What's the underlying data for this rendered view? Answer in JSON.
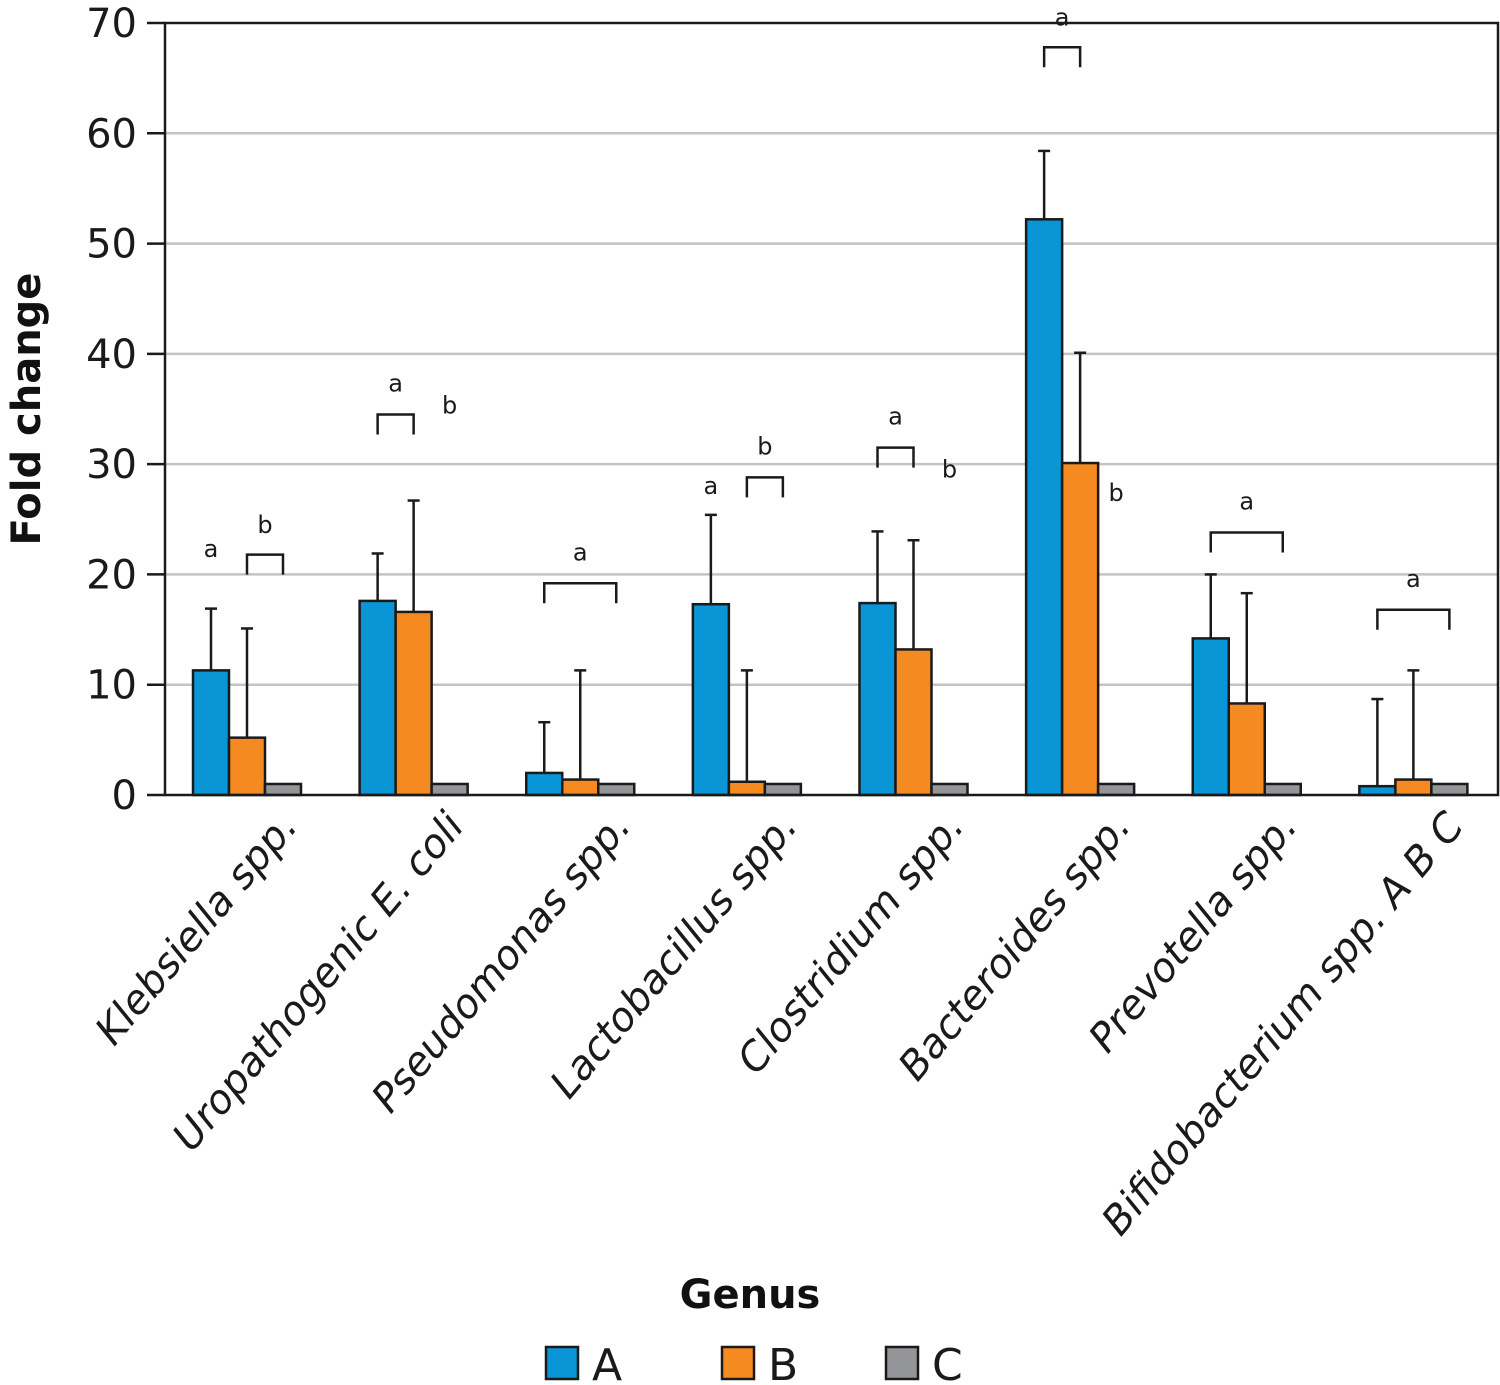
{
  "chart_data": {
    "type": "bar",
    "title": "",
    "xlabel": "Genus",
    "ylabel": "Fold change",
    "ylim": [
      0,
      70
    ],
    "yticks": [
      0,
      10,
      20,
      30,
      40,
      50,
      60,
      70
    ],
    "grid": true,
    "legend_position": "bottom",
    "categories": [
      {
        "label": "Klebsiella spp."
      },
      {
        "label": "Uropathogenic E. coli"
      },
      {
        "label": "Pseudomonas spp."
      },
      {
        "label": "Lactobacillus spp."
      },
      {
        "label": "Clostridium spp."
      },
      {
        "label": "Bacteroides spp."
      },
      {
        "label": "Prevotella spp."
      },
      {
        "label": "Bifidobacterium spp. A B C"
      }
    ],
    "series": [
      {
        "name": "A",
        "color": "#0a95d6",
        "values": [
          11.3,
          17.6,
          2.0,
          17.3,
          17.4,
          52.2,
          14.2,
          0.8
        ],
        "errors": [
          5.6,
          4.3,
          4.6,
          8.1,
          6.5,
          6.2,
          5.8,
          7.9
        ]
      },
      {
        "name": "B",
        "color": "#f58a20",
        "values": [
          5.2,
          16.6,
          1.4,
          1.2,
          13.2,
          30.1,
          8.3,
          1.4
        ],
        "errors": [
          9.9,
          10.1,
          9.9,
          10.1,
          9.9,
          10.0,
          10.0,
          9.9
        ]
      },
      {
        "name": "C",
        "color": "#939598",
        "values": [
          1.0,
          1.0,
          1.0,
          1.0,
          1.0,
          1.0,
          1.0,
          1.0
        ],
        "errors": [
          0,
          0,
          0,
          0,
          0,
          0,
          0,
          0
        ]
      }
    ],
    "significance_brackets": [
      {
        "category": 0,
        "from": 1,
        "to": 2,
        "y": 21.8,
        "label": "b",
        "label_y": 24.5
      },
      {
        "category": 1,
        "from": 0,
        "to": 1,
        "y": 34.5,
        "label": "a",
        "label_y": 37.3
      },
      {
        "category": 2,
        "from": 0,
        "to": 2,
        "y": 19.2,
        "label": "a",
        "label_y": 22.0
      },
      {
        "category": 3,
        "from": 1,
        "to": 2,
        "y": 28.8,
        "label": "b",
        "label_y": 31.6
      },
      {
        "category": 4,
        "from": 0,
        "to": 1,
        "y": 31.5,
        "label": "a",
        "label_y": 34.3
      },
      {
        "category": 5,
        "from": 0,
        "to": 1,
        "y": 67.8,
        "label": "a",
        "label_y": 70.5
      },
      {
        "category": 6,
        "from": 0,
        "to": 2,
        "y": 23.8,
        "label": "a",
        "label_y": 26.6
      },
      {
        "category": 7,
        "from": 0,
        "to": 2,
        "y": 16.8,
        "label": "a",
        "label_y": 19.6
      }
    ],
    "point_labels": [
      {
        "category": 0,
        "series": 0,
        "label": "a",
        "y": 22.3
      },
      {
        "category": 1,
        "series": 2,
        "label": "b",
        "y": 35.3
      },
      {
        "category": 3,
        "series": 0,
        "label": "a",
        "y": 28.0
      },
      {
        "category": 4,
        "series": 2,
        "label": "b",
        "y": 29.5
      },
      {
        "category": 5,
        "series": 2,
        "label": "b",
        "y": 27.4
      }
    ]
  }
}
